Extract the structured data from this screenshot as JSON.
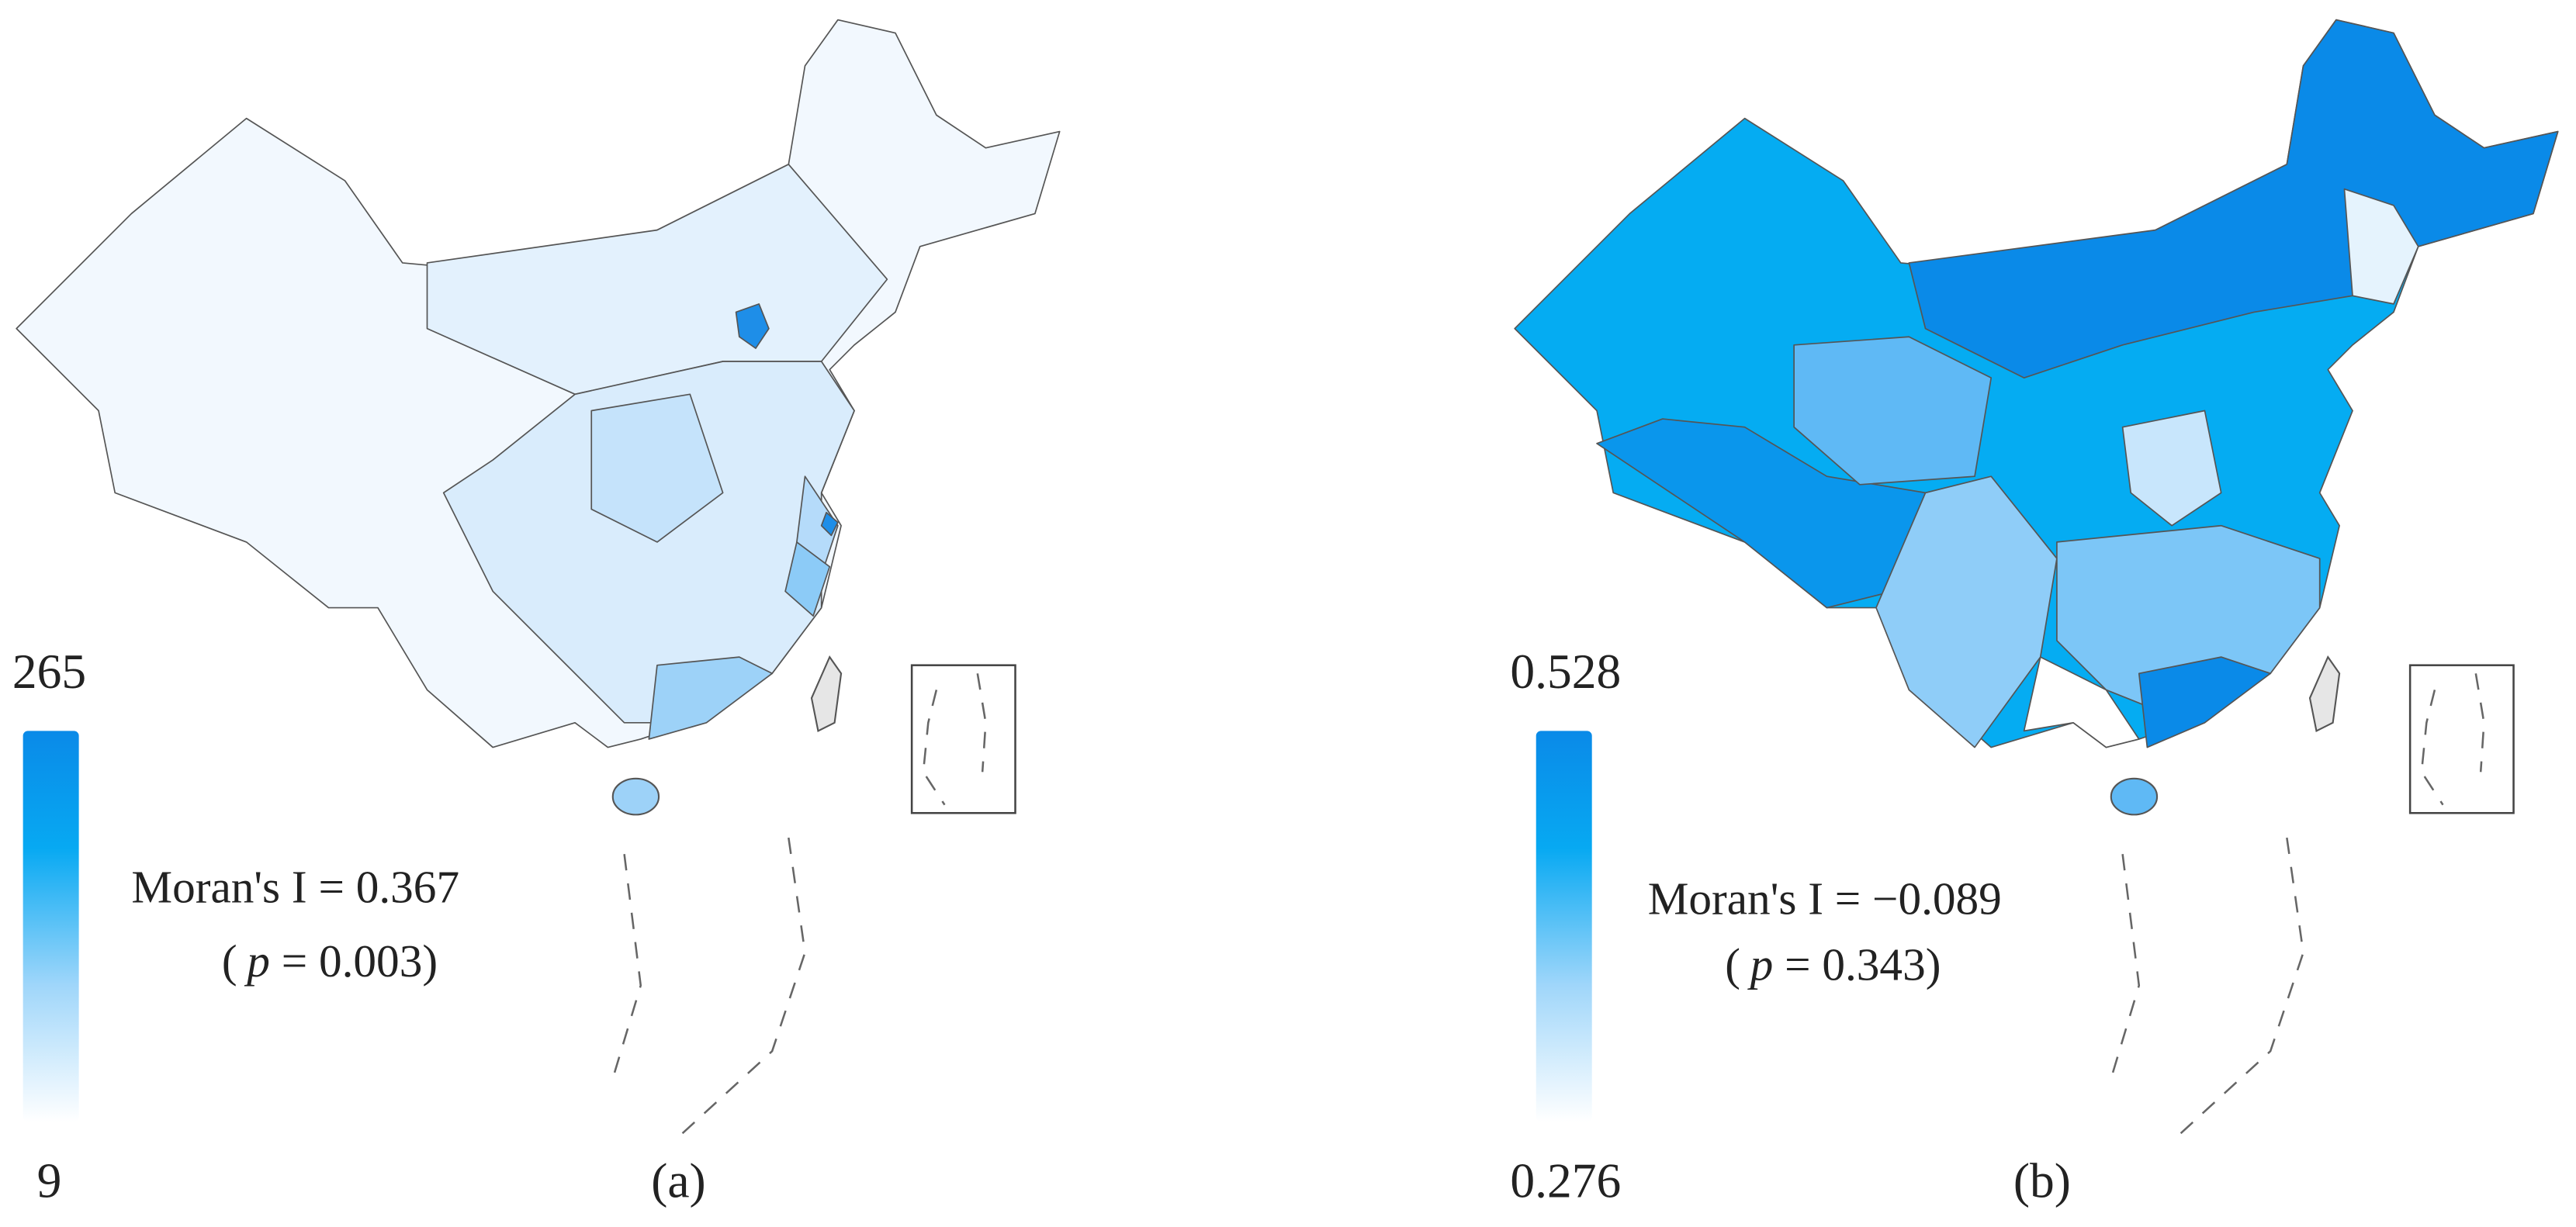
{
  "panels": [
    {
      "legend_max": "265",
      "legend_min": "9",
      "moran": "Moran's I = 0.367",
      "p_open": "(",
      "p_symbol": "p",
      "p_rest": " = 0.003)",
      "label": "(a)"
    },
    {
      "legend_max": "0.528",
      "legend_min": "0.276",
      "moran": "Moran's I = −0.089",
      "p_open": "(",
      "p_symbol": "p",
      "p_rest": " = 0.343)",
      "label": "(b)"
    }
  ]
}
